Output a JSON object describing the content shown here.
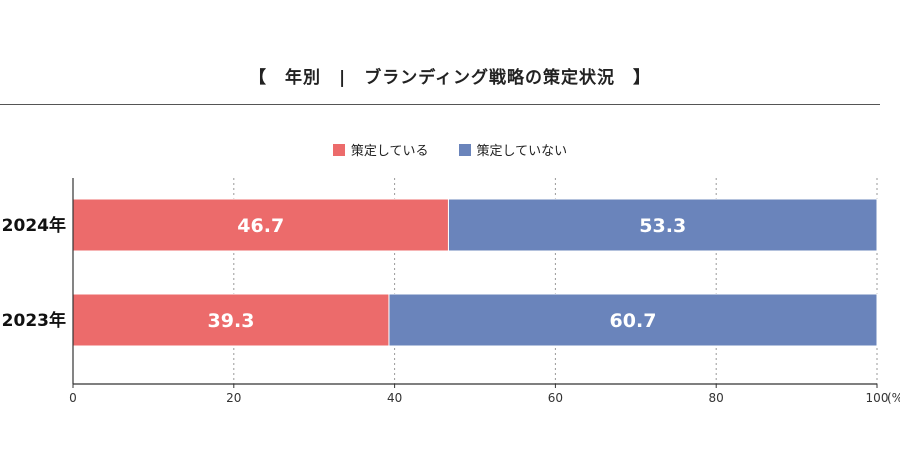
{
  "title": "【　年別　|　ブランディング戦略の策定状況　】",
  "colors": {
    "yes": "#ec6b6b",
    "no": "#6a84bb"
  },
  "chart_data": {
    "type": "bar",
    "orientation": "horizontal",
    "stacked": true,
    "categories": [
      "2024年",
      "2023年"
    ],
    "series": [
      {
        "name": "策定している",
        "values": [
          46.7,
          39.3
        ]
      },
      {
        "name": "策定していない",
        "values": [
          53.3,
          60.7
        ]
      }
    ],
    "xlim": [
      0,
      100
    ],
    "xticks": [
      "0",
      "20",
      "40",
      "60",
      "80",
      "100"
    ],
    "xunit": "(%)",
    "grid": true,
    "legend": "top-center"
  }
}
